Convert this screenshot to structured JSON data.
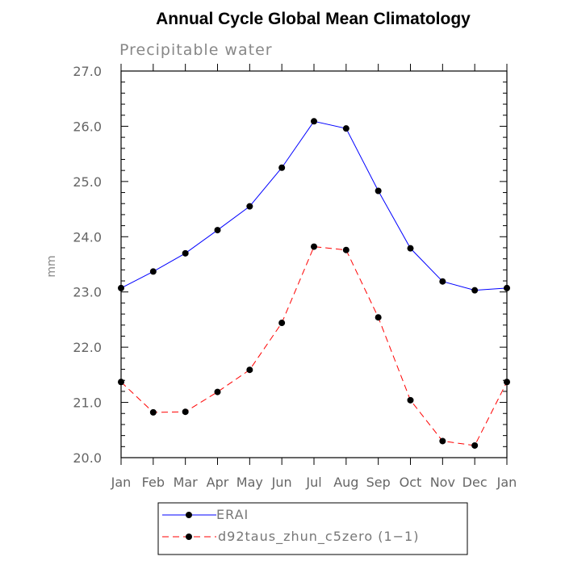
{
  "chart_data": {
    "type": "line",
    "title": "Annual Cycle Global Mean Climatology",
    "subtitle": "Precipitable water",
    "xlabel": "",
    "ylabel": "mm",
    "categories": [
      "Jan",
      "Feb",
      "Mar",
      "Apr",
      "May",
      "Jun",
      "Jul",
      "Aug",
      "Sep",
      "Oct",
      "Nov",
      "Dec",
      "Jan"
    ],
    "ylim": [
      20.0,
      27.0
    ],
    "yticks": [
      "20.0",
      "21.0",
      "22.0",
      "23.0",
      "24.0",
      "25.0",
      "26.0",
      "27.0"
    ],
    "grid": false,
    "legend_position": "bottom",
    "series": [
      {
        "name": "ERAI",
        "color": "#0000ff",
        "style": "solid",
        "values": [
          23.07,
          23.37,
          23.7,
          24.12,
          24.55,
          25.25,
          26.09,
          25.96,
          24.83,
          23.79,
          23.19,
          23.03,
          23.07
        ]
      },
      {
        "name": "d92taus_zhun_c5zero (1−1)",
        "color": "#ff0000",
        "style": "dashed",
        "values": [
          21.37,
          20.82,
          20.83,
          21.19,
          21.59,
          22.44,
          23.82,
          23.76,
          22.54,
          21.04,
          20.3,
          20.22,
          21.37
        ]
      }
    ]
  }
}
